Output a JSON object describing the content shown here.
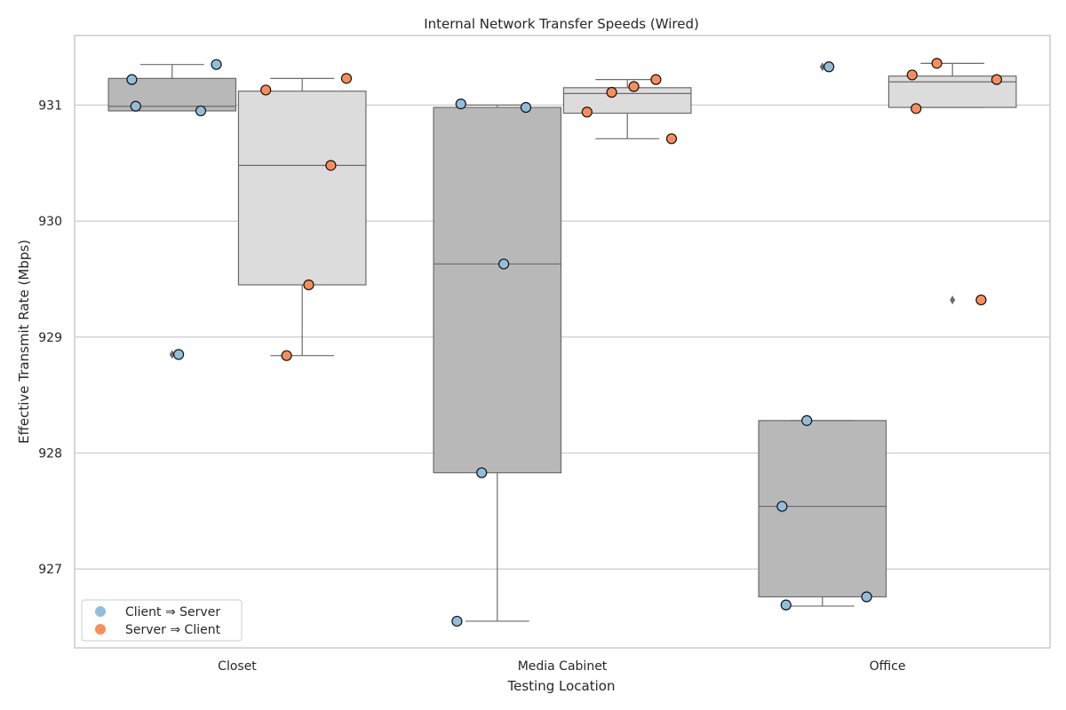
{
  "chart_data": {
    "type": "box",
    "title": "Internal Network Transfer Speeds (Wired)",
    "xlabel": "Testing Location",
    "ylabel": "Effective Transmit Rate (Mbps)",
    "ylim": [
      926.32,
      931.6
    ],
    "yticks": [
      927,
      928,
      929,
      930,
      931
    ],
    "grid": "horizontal",
    "legend_position": "bottom-left",
    "categories": [
      "Closet",
      "Media Cabinet",
      "Office"
    ],
    "series": [
      {
        "name": "Client ⇒ Server",
        "point_color": "#91bfdb",
        "box_color": "#b8b8b8",
        "boxes": [
          {
            "whisker_low": 930.95,
            "q1": 930.95,
            "median": 930.99,
            "q3": 931.23,
            "whisker_high": 931.35,
            "outliers": [
              928.85
            ]
          },
          {
            "whisker_low": 926.55,
            "q1": 927.83,
            "median": 929.63,
            "q3": 930.98,
            "whisker_high": 931.0,
            "outliers": []
          },
          {
            "whisker_low": 926.68,
            "q1": 926.76,
            "median": 927.54,
            "q3": 928.28,
            "whisker_high": 928.28,
            "outliers": [
              931.33
            ]
          }
        ],
        "points": [
          [
            931.22,
            931.35,
            930.99,
            930.95,
            928.85
          ],
          [
            931.01,
            930.98,
            929.63,
            927.83,
            926.55
          ],
          [
            931.33,
            928.28,
            927.54,
            926.76,
            926.69
          ]
        ]
      },
      {
        "name": "Server ⇒ Client",
        "point_color": "#fc8d59",
        "box_color": "#dcdcdc",
        "boxes": [
          {
            "whisker_low": 928.84,
            "q1": 929.45,
            "median": 930.48,
            "q3": 931.12,
            "whisker_high": 931.23,
            "outliers": []
          },
          {
            "whisker_low": 930.71,
            "q1": 930.93,
            "median": 931.1,
            "q3": 931.15,
            "whisker_high": 931.22,
            "outliers": []
          },
          {
            "whisker_low": 930.98,
            "q1": 930.98,
            "median": 931.2,
            "q3": 931.25,
            "whisker_high": 931.36,
            "outliers": [
              929.32
            ]
          }
        ],
        "points": [
          [
            931.23,
            931.13,
            930.48,
            929.45,
            928.84
          ],
          [
            931.22,
            931.16,
            931.11,
            930.94,
            930.71
          ],
          [
            931.36,
            931.26,
            931.22,
            930.97,
            929.32
          ]
        ]
      }
    ]
  }
}
